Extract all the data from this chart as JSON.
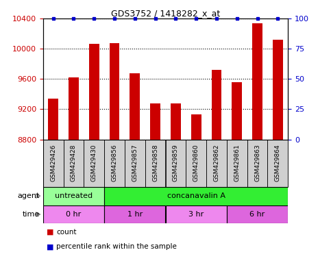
{
  "title": "GDS3752 / 1418282_x_at",
  "samples": [
    "GSM429426",
    "GSM429428",
    "GSM429430",
    "GSM429856",
    "GSM429857",
    "GSM429858",
    "GSM429859",
    "GSM429860",
    "GSM429862",
    "GSM429861",
    "GSM429863",
    "GSM429864"
  ],
  "counts": [
    9340,
    9620,
    10060,
    10070,
    9670,
    9280,
    9280,
    9130,
    9720,
    9560,
    10340,
    10120
  ],
  "percentile_ranks": [
    100,
    100,
    100,
    100,
    100,
    100,
    100,
    100,
    100,
    100,
    100,
    100
  ],
  "bar_color": "#cc0000",
  "dot_color": "#0000cc",
  "ylim_left": [
    8800,
    10400
  ],
  "ylim_right": [
    0,
    100
  ],
  "yticks_left": [
    8800,
    9200,
    9600,
    10000,
    10400
  ],
  "yticks_right": [
    0,
    25,
    50,
    75,
    100
  ],
  "agent_groups": [
    {
      "label": "untreated",
      "start": 0,
      "end": 3,
      "color": "#99ff99"
    },
    {
      "label": "concanavalin A",
      "start": 3,
      "end": 12,
      "color": "#33ee33"
    }
  ],
  "time_groups": [
    {
      "label": "0 hr",
      "start": 0,
      "end": 3,
      "color": "#ee88ee"
    },
    {
      "label": "1 hr",
      "start": 3,
      "end": 6,
      "color": "#dd66dd"
    },
    {
      "label": "3 hr",
      "start": 6,
      "end": 9,
      "color": "#ee88ee"
    },
    {
      "label": "6 hr",
      "start": 9,
      "end": 12,
      "color": "#dd66dd"
    }
  ],
  "legend_items": [
    {
      "label": "count",
      "color": "#cc0000"
    },
    {
      "label": "percentile rank within the sample",
      "color": "#0000cc"
    }
  ],
  "tick_color_left": "#cc0000",
  "tick_color_right": "#0000cc",
  "background_color": "#ffffff",
  "sample_bg_color": "#d0d0d0",
  "agent_label": "agent",
  "time_label": "time"
}
